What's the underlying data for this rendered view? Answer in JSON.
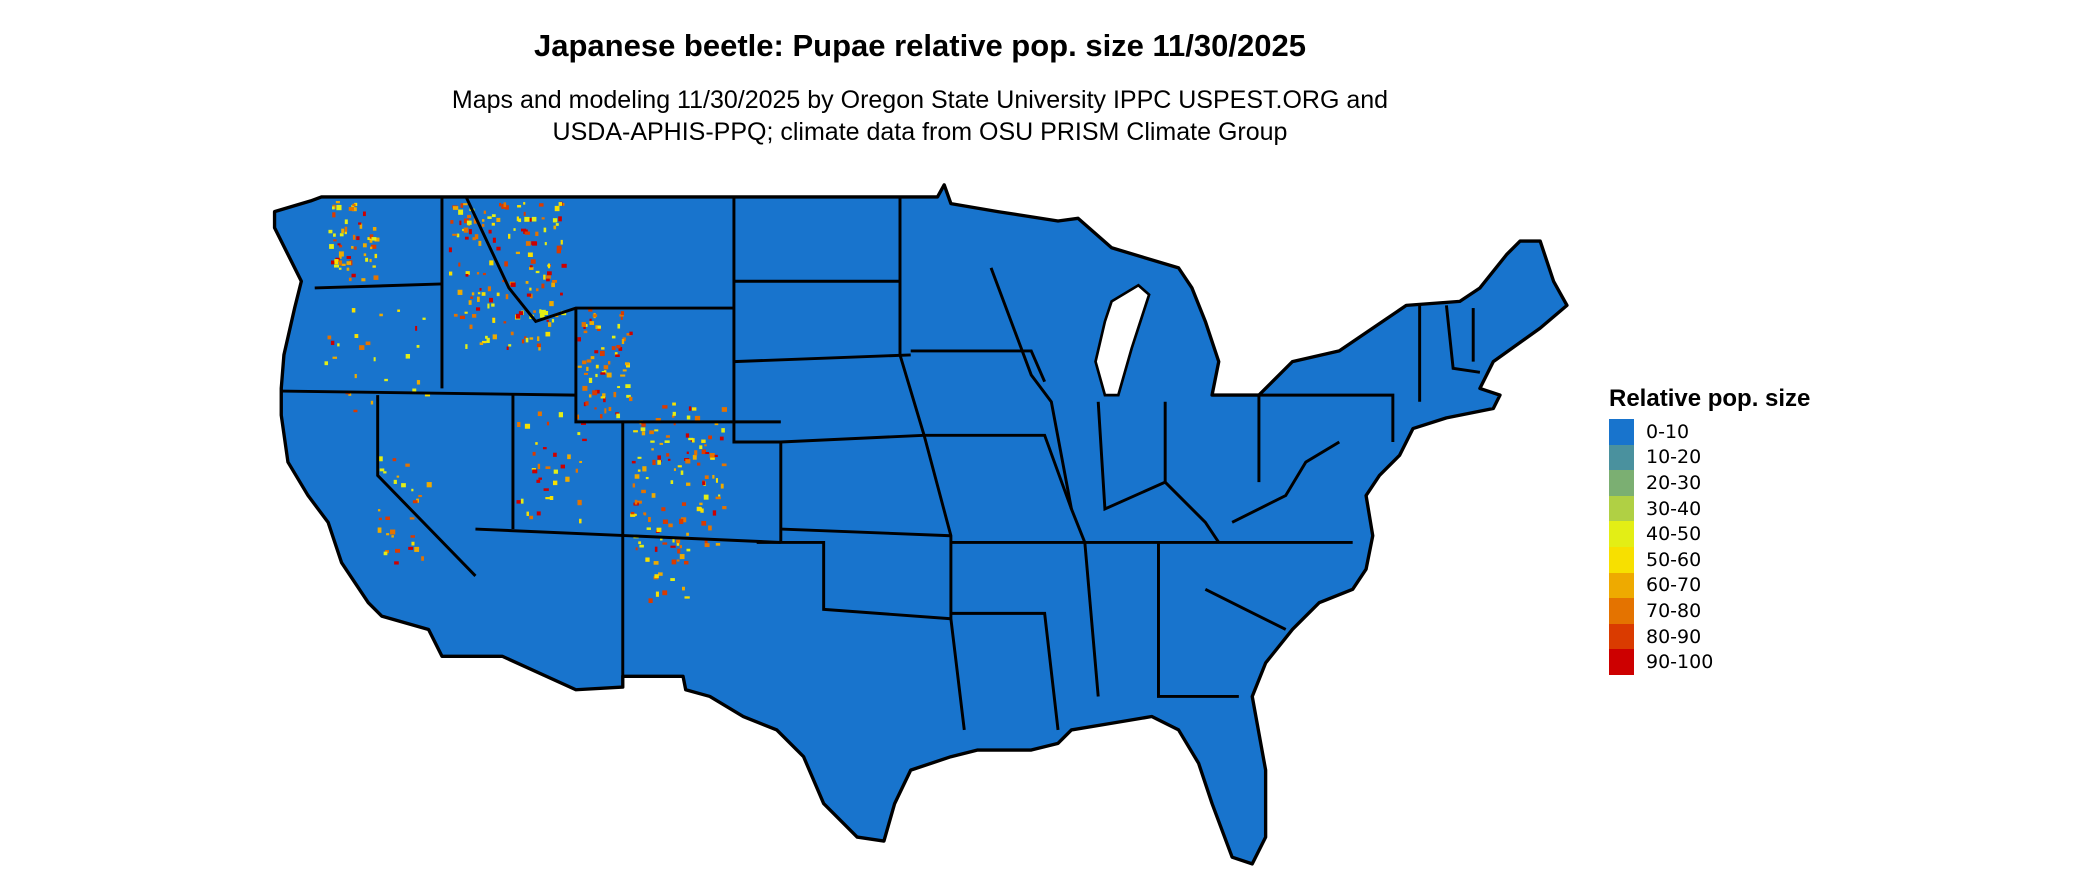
{
  "title": "Japanese beetle: Pupae relative pop. size 11/30/2025",
  "subtitle_line1": "Maps and modeling 11/30/2025 by Oregon State University IPPC USPEST.ORG and",
  "subtitle_line2": "USDA-APHIS-PPQ; climate data from OSU PRISM Climate Group",
  "map": {
    "region": "Contiguous United States",
    "base_color": "#1874CD",
    "border_color": "#000000",
    "hotspot_areas": [
      "Washington (Cascades)",
      "Idaho",
      "western Montana",
      "western Wyoming",
      "Utah",
      "Colorado Rockies",
      "northern New Mexico",
      "eastern California / Sierra Nevada"
    ]
  },
  "legend": {
    "title": "Relative pop. size",
    "items": [
      {
        "label": "0-10",
        "color": "#1874CD"
      },
      {
        "label": "10-20",
        "color": "#4A919E"
      },
      {
        "label": "20-30",
        "color": "#7BAF72"
      },
      {
        "label": "30-40",
        "color": "#B0D044"
      },
      {
        "label": "40-50",
        "color": "#E3EE15"
      },
      {
        "label": "50-60",
        "color": "#F7E000"
      },
      {
        "label": "60-70",
        "color": "#EEAA00"
      },
      {
        "label": "70-80",
        "color": "#E47300"
      },
      {
        "label": "80-90",
        "color": "#DA3B00"
      },
      {
        "label": "90-100",
        "color": "#CD0000"
      }
    ]
  }
}
